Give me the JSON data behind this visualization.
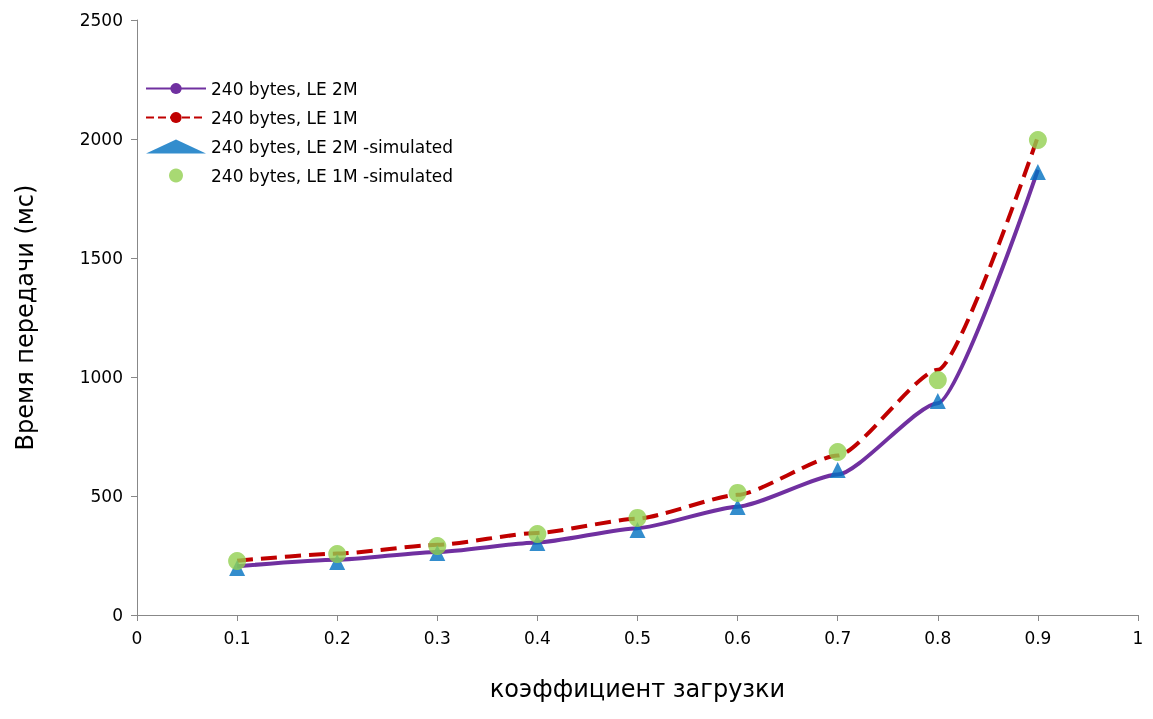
{
  "chart_data": {
    "type": "line",
    "xlabel": "коэффициент загрузки",
    "ylabel": "Время передачи (мс)",
    "x": [
      0.1,
      0.2,
      0.3,
      0.4,
      0.5,
      0.6,
      0.7,
      0.8,
      0.9
    ],
    "xlim": [
      0,
      1
    ],
    "xticks": [
      0,
      0.1,
      0.2,
      0.3,
      0.4,
      0.5,
      0.6,
      0.7,
      0.8,
      0.9,
      1
    ],
    "ylim": [
      0,
      2500
    ],
    "yticks": [
      0,
      500,
      1000,
      1500,
      2000,
      2500
    ],
    "grid": false,
    "legend": "top left",
    "series": [
      {
        "name": "240 bytes, LE 2M",
        "color": "#7030a0",
        "line_style": "solid",
        "marker": "none",
        "values": [
          205,
          232,
          265,
          305,
          365,
          455,
          590,
          890,
          1870
        ]
      },
      {
        "name": "240 bytes, LE 1M",
        "color": "#c00000",
        "line_style": "dashed",
        "marker": "none",
        "values": [
          228,
          258,
          295,
          345,
          405,
          505,
          670,
          1030,
          2010
        ]
      },
      {
        "name": "240 bytes, LE 2M -simulated",
        "type": "scatter",
        "color": "#0070c0",
        "marker": "triangle",
        "values": [
          197,
          223,
          260,
          302,
          357,
          454,
          609,
          899,
          1861
        ]
      },
      {
        "name": "240 bytes, LE 1M -simulated",
        "type": "scatter",
        "color": "#92d050",
        "marker": "circle",
        "values": [
          227,
          256,
          290,
          340,
          408,
          513,
          685,
          987,
          1996
        ]
      }
    ]
  }
}
